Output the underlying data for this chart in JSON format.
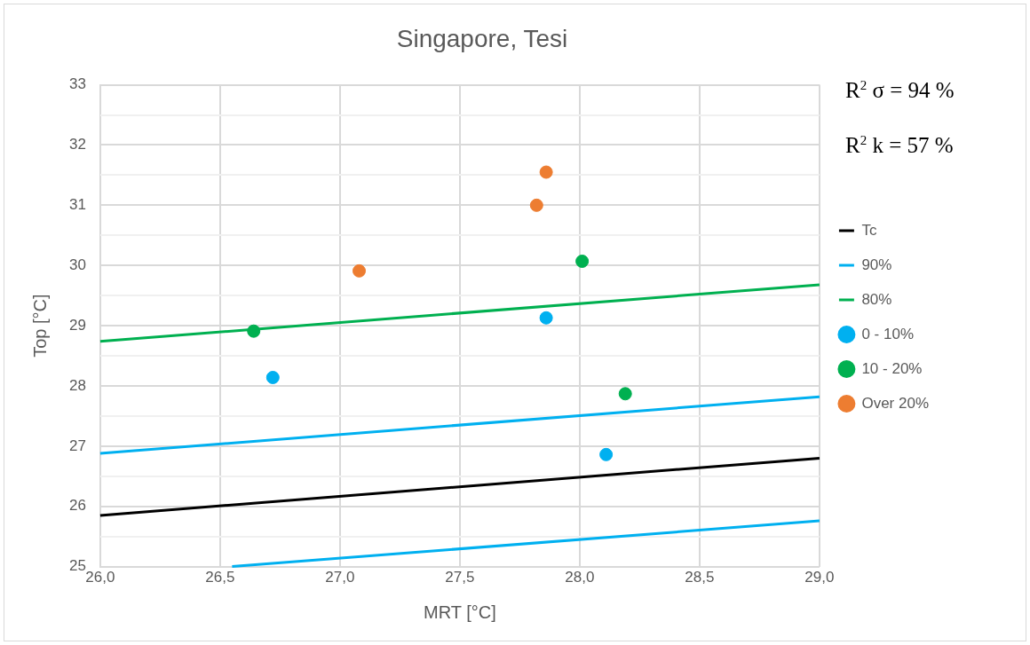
{
  "chart_data": {
    "type": "scatter",
    "title": "Singapore, Tesi",
    "xlabel": "MRT [°C]",
    "ylabel": "Top [°C]",
    "xlim": [
      26,
      29
    ],
    "xticks": [
      {
        "value": 26,
        "label": "26,0"
      },
      {
        "value": 26.5,
        "label": "26,5"
      },
      {
        "value": 27,
        "label": "27,0"
      },
      {
        "value": 27.5,
        "label": "27,5"
      },
      {
        "value": 28,
        "label": "28,0"
      },
      {
        "value": 28.5,
        "label": "28,5"
      },
      {
        "value": 29,
        "label": "29,0"
      }
    ],
    "ylim": [
      25,
      33
    ],
    "yticks": [
      25,
      {
        "value": 25.5,
        "label": null
      },
      26,
      {
        "value": 26.5,
        "label": null
      },
      27,
      {
        "value": 27.5,
        "label": null
      },
      28,
      {
        "value": 28.5,
        "label": null
      },
      29,
      {
        "value": 29.5,
        "label": null
      },
      30,
      {
        "value": 30.5,
        "label": null
      },
      31,
      {
        "value": 31.5,
        "label": null
      },
      32,
      {
        "value": 32.5,
        "label": null
      },
      33
    ],
    "grid": true,
    "legend": "right",
    "annotations": [
      "R$^{2}$ σ = 94 %",
      "R$^{2}$ k = 57 %"
    ],
    "series": [
      {
        "name": "Tc",
        "type": "line",
        "marker": "none",
        "color": "#000000",
        "x": [
          26,
          29
        ],
        "values": [
          25.85,
          26.8
        ]
      },
      {
        "name": "90%",
        "type": "line",
        "marker": "none",
        "color": "#00b0f0",
        "x": [
          26,
          29
        ],
        "values": [
          26.88,
          27.82
        ]
      },
      {
        "name": "80%",
        "type": "line",
        "marker": "none",
        "color": "#00b050",
        "x": [
          26,
          29
        ],
        "values": [
          28.74,
          29.68
        ]
      },
      {
        "type": "line",
        "marker": "none",
        "color": "#00b0f0",
        "x": [
          26.55,
          29
        ],
        "values": [
          25.0,
          25.76
        ]
      },
      {
        "name": "0 - 10%",
        "marker": "circle",
        "color": "#00b0f0",
        "x": [
          26.72,
          27.86,
          28.11
        ],
        "values": [
          28.14,
          29.13,
          26.86
        ]
      },
      {
        "name": "10 - 20%",
        "marker": "circle",
        "color": "#00b050",
        "x": [
          26.64,
          28.01,
          28.19
        ],
        "values": [
          28.91,
          30.07,
          27.87
        ]
      },
      {
        "name": "Over 20%",
        "marker": "circle",
        "color": "#ed7d31",
        "x": [
          27.08,
          27.82,
          27.86
        ],
        "values": [
          29.91,
          31.0,
          31.55
        ]
      }
    ]
  }
}
